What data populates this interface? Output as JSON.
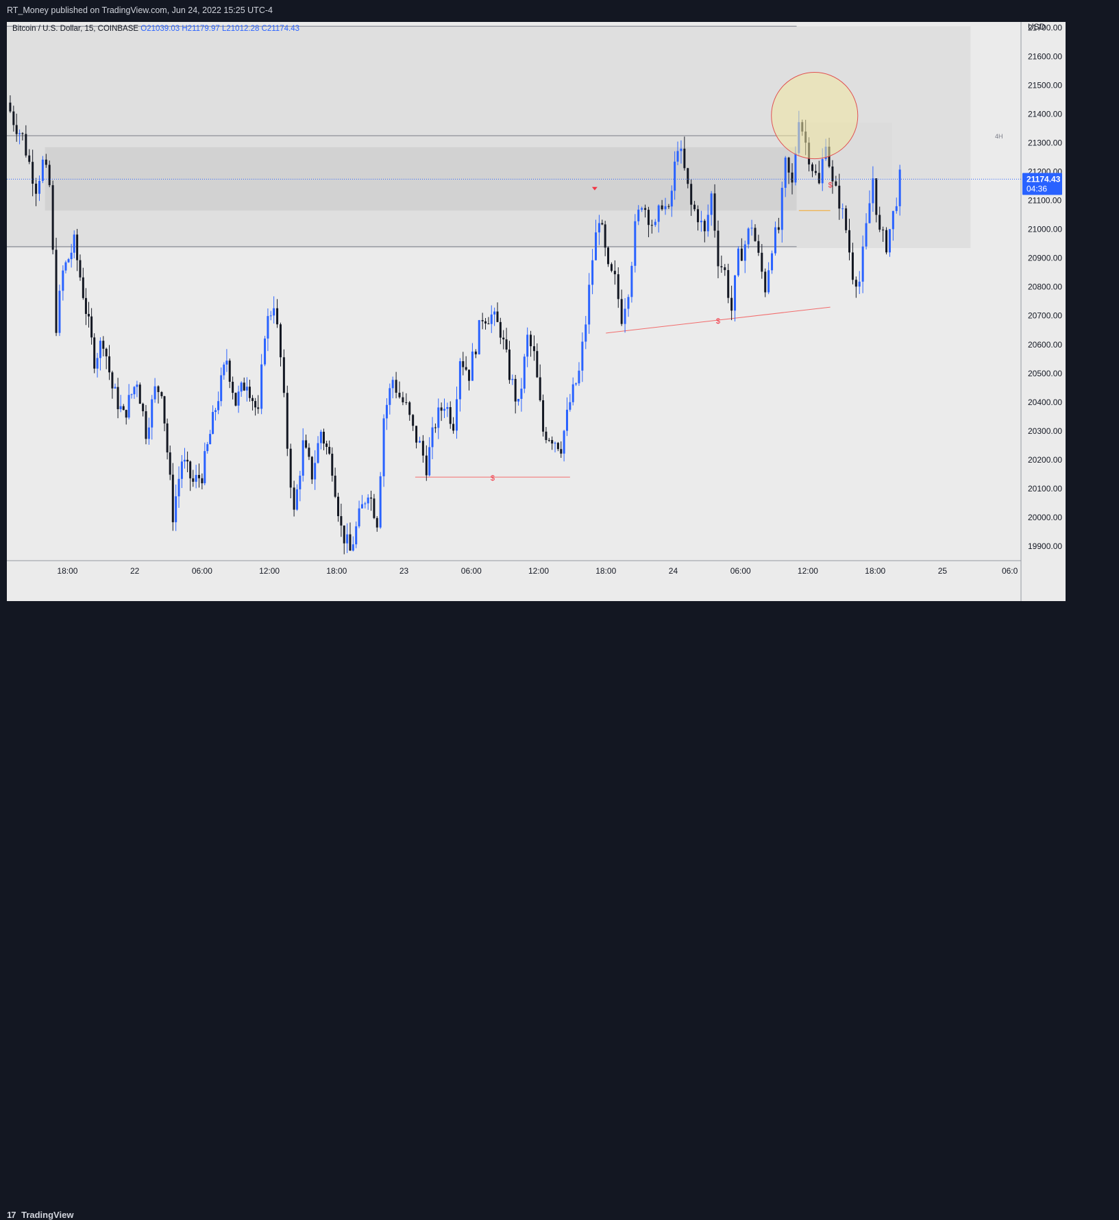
{
  "header": {
    "text": "RT_Money published on TradingView.com, Jun 24, 2022 15:25 UTC-4"
  },
  "footer": {
    "logo_mark": "17",
    "logo_text": "TradingView"
  },
  "colors": {
    "background_dark": "#131722",
    "chart_background": "#ebebeb",
    "candle_up": "#2962ff",
    "candle_down": "#131722",
    "zone_fill": "#d6d6d6",
    "highlight_circle": "#f0e6a0",
    "highlight_circle_stroke": "#e05050",
    "annotation_red": "#f23645",
    "last_price_bg": "#2962ff"
  },
  "chart_data": {
    "type": "candlestick",
    "symbol_label": "Bitcoin / U.S. Dollar, 15, COINBASE",
    "ohlc_label": {
      "O": "O21039.03",
      "H": "H21179.97",
      "L": "L21012.28",
      "C": "C21174.43"
    },
    "currency": "USD",
    "last_price": "21174.43",
    "countdown": "04:36",
    "timeframe_marker": "4H",
    "y_range": [
      19850,
      21720
    ],
    "y_ticks": [
      "21700.00",
      "21600.00",
      "21500.00",
      "21400.00",
      "21300.00",
      "21200.00",
      "21100.00",
      "21000.00",
      "20900.00",
      "20800.00",
      "20700.00",
      "20600.00",
      "20500.00",
      "20400.00",
      "20300.00",
      "20200.00",
      "20100.00",
      "20000.00",
      "19900.00"
    ],
    "x_ticks": [
      "18:00",
      "22",
      "06:00",
      "12:00",
      "18:00",
      "23",
      "06:00",
      "12:00",
      "18:00",
      "24",
      "06:00",
      "12:00",
      "18:00",
      "25",
      "06:0"
    ],
    "x_tick_hours": [
      18,
      24,
      30,
      36,
      42,
      48,
      54,
      60,
      66,
      72,
      78,
      84,
      90,
      96,
      102
    ],
    "x_range_hours": [
      12.6,
      103.0
    ],
    "candle_path": [
      [
        12.6,
        21440
      ],
      [
        13.2,
        21380
      ],
      [
        14.0,
        21320
      ],
      [
        14.6,
        21230
      ],
      [
        15.2,
        21150
      ],
      [
        15.8,
        21230
      ],
      [
        16.4,
        21150
      ],
      [
        17.0,
        20670
      ],
      [
        17.6,
        20850
      ],
      [
        18.6,
        20950
      ],
      [
        19.4,
        20780
      ],
      [
        20.4,
        20550
      ],
      [
        21.2,
        20620
      ],
      [
        22.0,
        20450
      ],
      [
        23.0,
        20350
      ],
      [
        24.2,
        20480
      ],
      [
        25.0,
        20300
      ],
      [
        25.8,
        20440
      ],
      [
        26.4,
        20450
      ],
      [
        27.4,
        20010
      ],
      [
        28.2,
        20200
      ],
      [
        29.2,
        20120
      ],
      [
        30.0,
        20150
      ],
      [
        31.2,
        20380
      ],
      [
        32.2,
        20550
      ],
      [
        33.0,
        20400
      ],
      [
        34.0,
        20480
      ],
      [
        35.0,
        20350
      ],
      [
        35.6,
        20650
      ],
      [
        36.4,
        20750
      ],
      [
        37.0,
        20550
      ],
      [
        37.6,
        20250
      ],
      [
        38.2,
        20010
      ],
      [
        39.0,
        20250
      ],
      [
        39.8,
        20150
      ],
      [
        40.6,
        20300
      ],
      [
        41.6,
        20180
      ],
      [
        42.4,
        19960
      ],
      [
        43.2,
        19880
      ],
      [
        44.0,
        20000
      ],
      [
        44.8,
        20100
      ],
      [
        45.6,
        19990
      ],
      [
        46.2,
        20350
      ],
      [
        47.0,
        20480
      ],
      [
        47.6,
        20420
      ],
      [
        48.2,
        20380
      ],
      [
        48.8,
        20300
      ],
      [
        49.4,
        20250
      ],
      [
        50.0,
        20180
      ],
      [
        50.8,
        20330
      ],
      [
        51.6,
        20400
      ],
      [
        52.4,
        20330
      ],
      [
        53.0,
        20560
      ],
      [
        53.8,
        20500
      ],
      [
        54.4,
        20600
      ],
      [
        55.0,
        20700
      ],
      [
        55.8,
        20700
      ],
      [
        56.6,
        20650
      ],
      [
        57.4,
        20500
      ],
      [
        58.2,
        20380
      ],
      [
        59.0,
        20620
      ],
      [
        59.6,
        20560
      ],
      [
        60.4,
        20300
      ],
      [
        61.2,
        20280
      ],
      [
        62.0,
        20250
      ],
      [
        62.8,
        20400
      ],
      [
        63.6,
        20500
      ],
      [
        64.2,
        20680
      ],
      [
        64.8,
        20900
      ],
      [
        65.4,
        21050
      ],
      [
        66.2,
        20850
      ],
      [
        66.8,
        20820
      ],
      [
        67.4,
        20700
      ],
      [
        68.0,
        20800
      ],
      [
        68.6,
        21000
      ],
      [
        69.2,
        21100
      ],
      [
        69.8,
        21050
      ],
      [
        70.4,
        21000
      ],
      [
        71.0,
        21100
      ],
      [
        71.6,
        21050
      ],
      [
        72.4,
        21300
      ],
      [
        73.0,
        21200
      ],
      [
        73.6,
        21080
      ],
      [
        74.2,
        21050
      ],
      [
        74.8,
        20980
      ],
      [
        75.4,
        21120
      ],
      [
        76.0,
        20900
      ],
      [
        76.6,
        20850
      ],
      [
        77.2,
        20720
      ],
      [
        77.8,
        20900
      ],
      [
        78.4,
        20950
      ],
      [
        79.0,
        21020
      ],
      [
        79.6,
        20900
      ],
      [
        80.2,
        20800
      ],
      [
        80.8,
        20950
      ],
      [
        81.4,
        21000
      ],
      [
        82.0,
        21220
      ],
      [
        82.6,
        21150
      ],
      [
        83.2,
        21400
      ],
      [
        83.8,
        21300
      ],
      [
        84.4,
        21220
      ],
      [
        85.0,
        21150
      ],
      [
        85.6,
        21320
      ],
      [
        86.2,
        21150
      ],
      [
        86.8,
        21100
      ],
      [
        87.4,
        21000
      ],
      [
        88.0,
        20850
      ],
      [
        88.6,
        20820
      ],
      [
        89.2,
        21000
      ],
      [
        89.8,
        21180
      ],
      [
        90.4,
        20980
      ],
      [
        91.0,
        20950
      ],
      [
        91.6,
        21050
      ],
      [
        92.2,
        21174
      ]
    ],
    "lines": [
      {
        "name": "liquidity-line-low",
        "from": [
          49.0,
          20140
        ],
        "to": [
          62.8,
          20140
        ],
        "label": "$"
      },
      {
        "name": "trendline-lows",
        "from": [
          66.0,
          20640
        ],
        "to": [
          86.0,
          20730
        ],
        "label": "$"
      },
      {
        "name": "box-top-line",
        "from": [
          12.6,
          21325
        ],
        "to": [
          83.0,
          21325
        ]
      },
      {
        "name": "top-border-line",
        "from": [
          12.6,
          21705
        ],
        "to": [
          83.0,
          21705
        ]
      },
      {
        "name": "zone-bottom-line",
        "from": [
          12.6,
          20940
        ],
        "to": [
          83.0,
          20940
        ]
      },
      {
        "name": "orange-level",
        "from": [
          83.2,
          21065
        ],
        "to": [
          86.0,
          21065
        ]
      }
    ],
    "zones": [
      {
        "name": "supply-zone-large",
        "x": [
          12.6,
          98.5
        ],
        "y": [
          20935,
          21705
        ]
      },
      {
        "name": "supply-zone-inner",
        "x": [
          16.0,
          83.0
        ],
        "y": [
          21065,
          21285
        ]
      },
      {
        "name": "supply-zone-4h",
        "x": [
          83.0,
          91.5
        ],
        "y": [
          21180,
          21370
        ]
      }
    ],
    "circle": {
      "center": [
        84.6,
        21395
      ],
      "radius_price": 150
    },
    "markers": [
      {
        "name": "triangle-marker",
        "at": [
          65.0,
          21140
        ],
        "type": "triangle-down"
      },
      {
        "name": "dollar-marker-right",
        "at": [
          86.0,
          21145
        ],
        "label": "$"
      }
    ]
  }
}
